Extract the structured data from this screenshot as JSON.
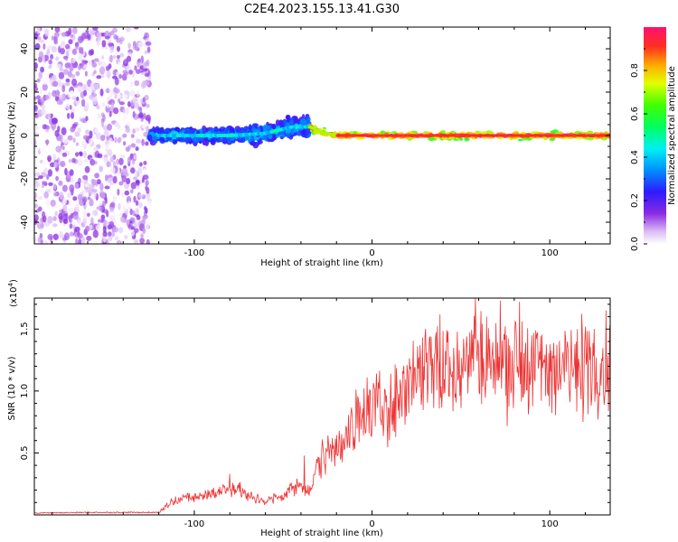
{
  "figure": {
    "title": "C2E4.2023.155.13.41.G30"
  },
  "chart_data": [
    {
      "type": "heatmap",
      "title": "C2E4.2023.155.13.41.G30",
      "xlabel": "Height of straight line (km)",
      "ylabel": "Frequency (Hz)",
      "xlim": [
        -190,
        134
      ],
      "ylim": [
        -50,
        50
      ],
      "x_ticks": [
        -100,
        0,
        100
      ],
      "y_ticks": [
        -40,
        -20,
        0,
        20,
        40
      ],
      "regions": [
        {
          "x_range": [
            -190,
            -125
          ],
          "freq_range": [
            -50,
            50
          ],
          "amplitude_range": [
            0.0,
            0.15
          ],
          "note": "diffuse"
        },
        {
          "x_range": [
            -125,
            -35
          ],
          "freq_range": [
            -8,
            12
          ],
          "amplitude_range": [
            0.1,
            0.45
          ]
        },
        {
          "x_range": [
            -35,
            134
          ],
          "freq_range": [
            -3,
            3
          ],
          "amplitude_range": [
            0.3,
            0.95
          ]
        }
      ],
      "ridge": [
        {
          "x": -120,
          "f": 0
        },
        {
          "x": -80,
          "f": 0
        },
        {
          "x": -60,
          "f": 1
        },
        {
          "x": -45,
          "f": 4
        },
        {
          "x": -35,
          "f": 4
        },
        {
          "x": -30,
          "f": 2
        },
        {
          "x": -20,
          "f": 0
        },
        {
          "x": 0,
          "f": 0
        },
        {
          "x": 134,
          "f": 0
        }
      ],
      "colorbar": {
        "label": "Normalized spectral amplitude",
        "range": [
          0.0,
          1.0
        ],
        "ticks": [
          "0.0",
          "0.2",
          "0.4",
          "0.6",
          "0.8"
        ],
        "tick_values": [
          0.0,
          0.2,
          0.4,
          0.6,
          0.8
        ]
      }
    },
    {
      "type": "line",
      "xlabel": "Height of straight line (km)",
      "ylabel": "SNR (10 * v/v)",
      "exponent_label": "(x10",
      "exponent_sup": "4",
      "exponent_close": ")",
      "xlim": [
        -190,
        134
      ],
      "ylim": [
        0,
        1.75
      ],
      "x_ticks": [
        -100,
        0,
        100
      ],
      "y_ticks": [
        "0.5",
        "1.0",
        "1.5"
      ],
      "y_tick_values": [
        0.5,
        1.0,
        1.5
      ],
      "series_color": "#ee3333",
      "series": [
        {
          "x": [
            -190,
            -160,
            -130,
            -120,
            -115,
            -110,
            -100,
            -90,
            -80,
            -75,
            -70,
            -65,
            -60,
            -55,
            -50,
            -45,
            -40,
            -35,
            -30,
            -25,
            -20,
            -15,
            -10,
            -5,
            0,
            5,
            10,
            15,
            20,
            25,
            30,
            35,
            40,
            50,
            60,
            70,
            80,
            90,
            100,
            110,
            120,
            134
          ],
          "y": [
            0.015,
            0.02,
            0.02,
            0.02,
            0.08,
            0.13,
            0.14,
            0.17,
            0.22,
            0.2,
            0.15,
            0.13,
            0.12,
            0.13,
            0.15,
            0.22,
            0.24,
            0.18,
            0.42,
            0.52,
            0.55,
            0.65,
            0.74,
            0.82,
            0.85,
            0.86,
            0.86,
            0.92,
            1.05,
            1.15,
            1.22,
            1.22,
            1.2,
            1.22,
            1.25,
            1.24,
            1.22,
            1.2,
            1.18,
            1.2,
            1.21,
            1.2
          ]
        }
      ],
      "spikes": [
        {
          "x": 58,
          "y": 1.75
        },
        {
          "x": 72,
          "y": 1.73
        },
        {
          "x": 83,
          "y": 1.72
        },
        {
          "x": -38,
          "y": 0.48
        },
        {
          "x": -80,
          "y": 0.33
        }
      ]
    }
  ]
}
